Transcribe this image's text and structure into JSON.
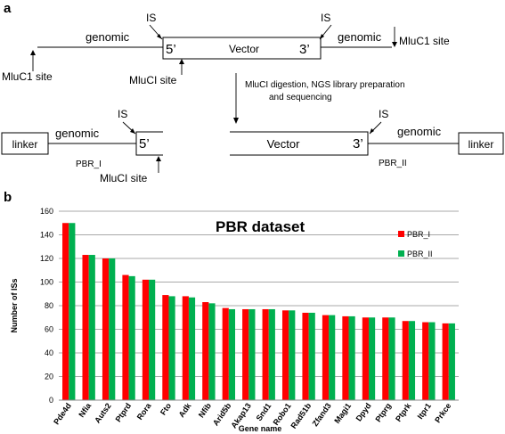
{
  "panel_a": {
    "label": "a",
    "top": {
      "vector": "Vector",
      "five": "5’",
      "three": "3’",
      "genomic_left": "genomic",
      "genomic_right": "genomic",
      "is_left": "IS",
      "is_right": "IS",
      "mluc1_left": "MluC1 site",
      "mluc1_right": "MluC1 site",
      "mluci_center": "MluCI site"
    },
    "step_text_1": "MluCI digestion, NGS library preparation",
    "step_text_2": "and sequencing",
    "bottom_left": {
      "linker": "linker",
      "genomic": "genomic",
      "is": "IS",
      "five": "5’",
      "name": "PBR_I",
      "mluci": "MluCI site"
    },
    "bottom_right": {
      "vector": "Vector",
      "three": "3’",
      "is": "IS",
      "genomic": "genomic",
      "linker": "linker",
      "name": "PBR_II"
    }
  },
  "panel_b": {
    "label": "b"
  },
  "chart_data": {
    "type": "bar",
    "title": "PBR dataset",
    "xlabel": "Gene name",
    "ylabel": "Number of ISs",
    "ylim": [
      0,
      160
    ],
    "yticks": [
      0,
      20,
      40,
      60,
      80,
      100,
      120,
      140,
      160
    ],
    "grid": true,
    "legend_position": "top-right",
    "categories": [
      "Pde4d",
      "Nfia",
      "Auts2",
      "Ptprd",
      "Rora",
      "Fto",
      "Adk",
      "Nfib",
      "Arid5b",
      "Akap13",
      "Snd1",
      "Robo1",
      "Rad51b",
      "Zfand3",
      "Magi1",
      "Dpyd",
      "Ptprg",
      "Ptprk",
      "Itpr1",
      "Prkce"
    ],
    "series": [
      {
        "name": "PBR_I",
        "color": "#ff0000",
        "values": [
          150,
          123,
          120,
          106,
          102,
          89,
          88,
          83,
          78,
          77,
          77,
          76,
          74,
          72,
          71,
          70,
          70,
          67,
          66,
          65
        ]
      },
      {
        "name": "PBR_II",
        "color": "#00b050",
        "values": [
          150,
          123,
          120,
          105,
          102,
          88,
          87,
          82,
          77,
          77,
          77,
          76,
          74,
          72,
          71,
          70,
          70,
          67,
          66,
          65
        ]
      }
    ]
  }
}
